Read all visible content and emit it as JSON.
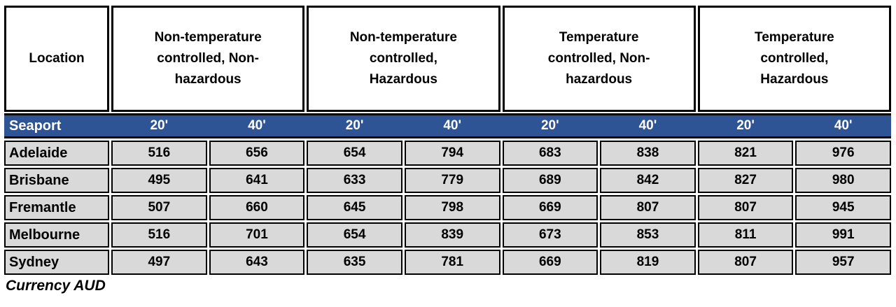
{
  "table": {
    "corner_header": "Location",
    "group_headers": [
      "Non-temperature controlled, Non-hazardous",
      "Non-temperature controlled, Hazardous",
      "Temperature controlled, Non-hazardous",
      "Temperature controlled, Hazardous"
    ],
    "subheader": {
      "label": "Seaport",
      "sizes": [
        "20'",
        "40'",
        "20'",
        "40'",
        "20'",
        "40'",
        "20'",
        "40'"
      ]
    },
    "rows": [
      {
        "location": "Adelaide",
        "values": [
          516,
          656,
          654,
          794,
          683,
          838,
          821,
          976
        ]
      },
      {
        "location": "Brisbane",
        "values": [
          495,
          641,
          633,
          779,
          689,
          842,
          827,
          980
        ]
      },
      {
        "location": "Fremantle",
        "values": [
          507,
          660,
          645,
          798,
          669,
          807,
          807,
          945
        ]
      },
      {
        "location": "Melbourne",
        "values": [
          516,
          701,
          654,
          839,
          673,
          853,
          811,
          991
        ]
      },
      {
        "location": "Sydney",
        "values": [
          497,
          643,
          635,
          781,
          669,
          819,
          807,
          957
        ]
      }
    ],
    "footnote": "Currency AUD",
    "colors": {
      "band_background": "#2F5496",
      "band_text": "#FFFFFF",
      "cell_background": "#D9D9D9",
      "border": "#000000"
    }
  }
}
